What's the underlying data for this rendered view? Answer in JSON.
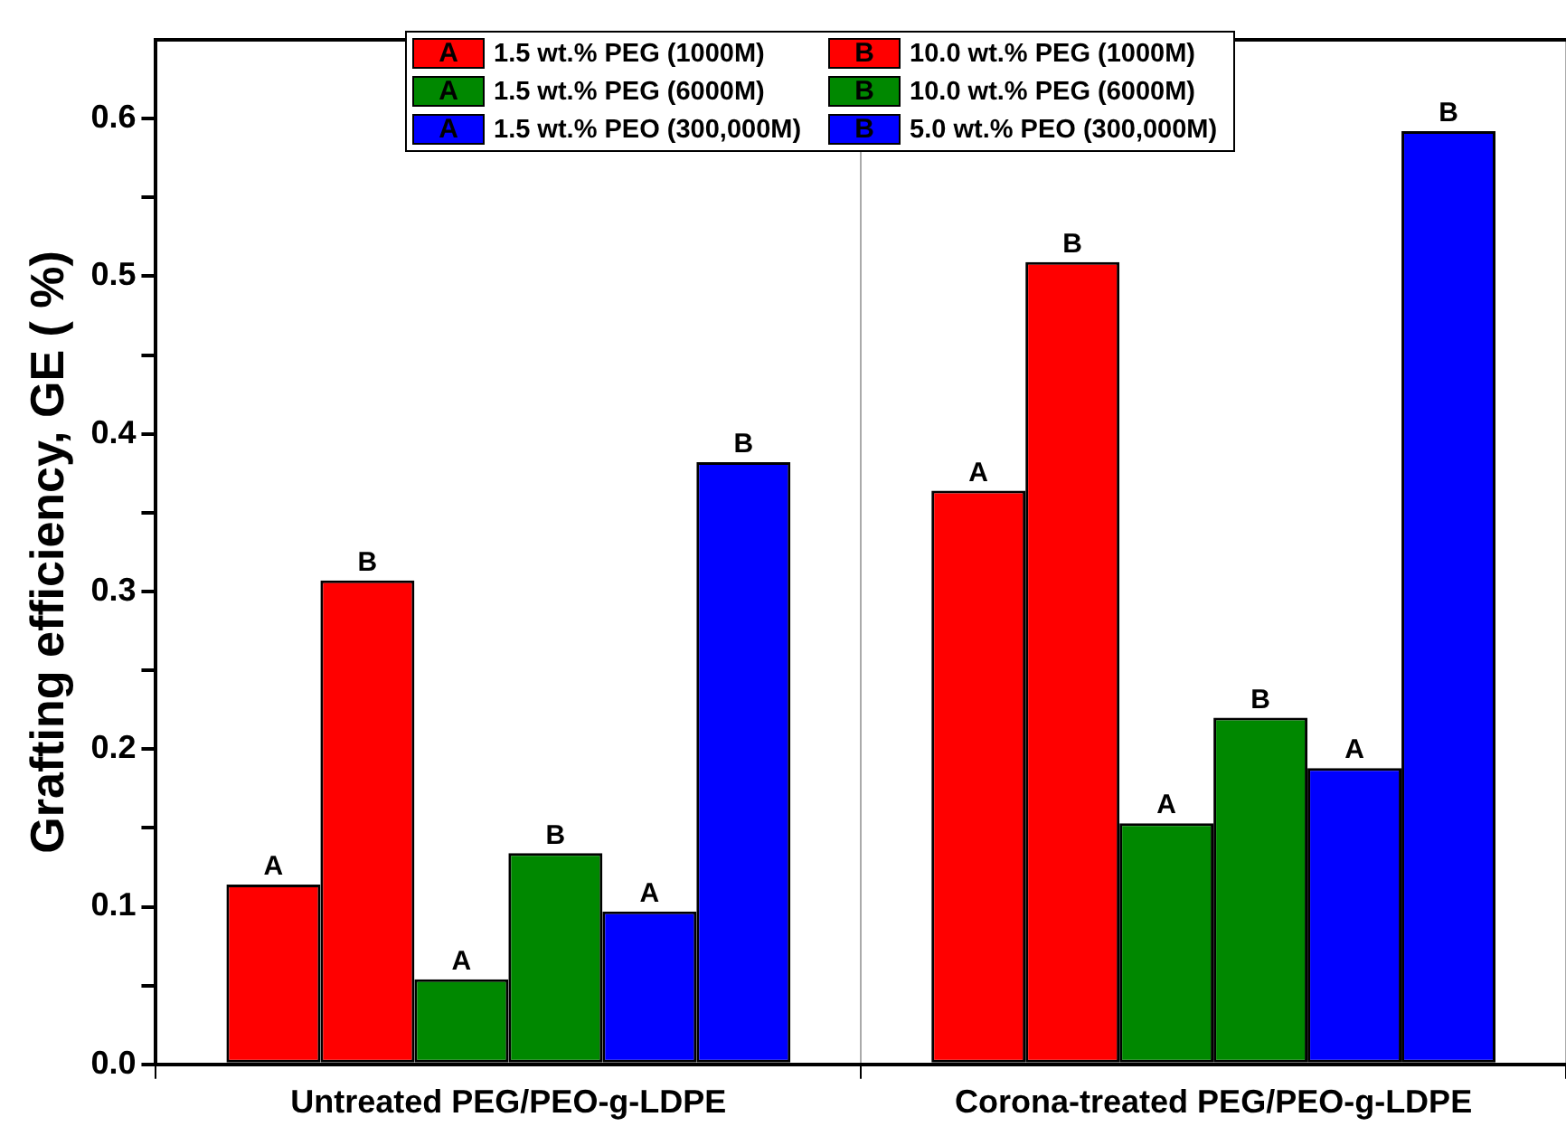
{
  "chart_data": {
    "type": "bar",
    "ylabel": "Grafting efficiency, GE ( %)",
    "categories": [
      "Untreated PEG/PEO-g-LDPE",
      "Corona-treated PEG/PEO-g-LDPE"
    ],
    "series": [
      {
        "name": "1.5 wt.% PEG (1000M)",
        "color": "#ff0000",
        "values": [
          0.114,
          0.364
        ],
        "value_labels": [
          "A",
          "A"
        ]
      },
      {
        "name": "10.0 wt.% PEG (1000M)",
        "color": "#ff0000",
        "values": [
          0.307,
          0.509
        ],
        "value_labels": [
          "B",
          "B"
        ]
      },
      {
        "name": "1.5 wt.% PEG (6000M)",
        "color": "#008800",
        "values": [
          0.054,
          0.153
        ],
        "value_labels": [
          "A",
          "A"
        ]
      },
      {
        "name": "10.0 wt.% PEG (6000M)",
        "color": "#008800",
        "values": [
          0.134,
          0.22
        ],
        "value_labels": [
          "B",
          "B"
        ]
      },
      {
        "name": "1.5 wt.% PEO (300,000M)",
        "color": "#0000ff",
        "values": [
          0.097,
          0.188
        ],
        "value_labels": [
          "A",
          "A"
        ]
      },
      {
        "name": "5.0 wt.% PEO (300,000M)",
        "color": "#0000ff",
        "values": [
          0.382,
          0.592
        ],
        "value_labels": [
          "B",
          "B"
        ]
      }
    ],
    "ylim": [
      0,
      0.65
    ],
    "yticks": [
      {
        "value": 0,
        "label": "0.0"
      },
      {
        "value": 0.05,
        "label": null
      },
      {
        "value": 0.1,
        "label": "0.1"
      },
      {
        "value": 0.15,
        "label": null
      },
      {
        "value": 0.2,
        "label": "0.2"
      },
      {
        "value": 0.25,
        "label": null
      },
      {
        "value": 0.3,
        "label": "0.3"
      },
      {
        "value": 0.35,
        "label": null
      },
      {
        "value": 0.4,
        "label": "0.4"
      },
      {
        "value": 0.45,
        "label": null
      },
      {
        "value": 0.5,
        "label": "0.5"
      },
      {
        "value": 0.55,
        "label": null
      },
      {
        "value": 0.6,
        "label": "0.6"
      }
    ],
    "grid": "x",
    "legend": "top"
  }
}
